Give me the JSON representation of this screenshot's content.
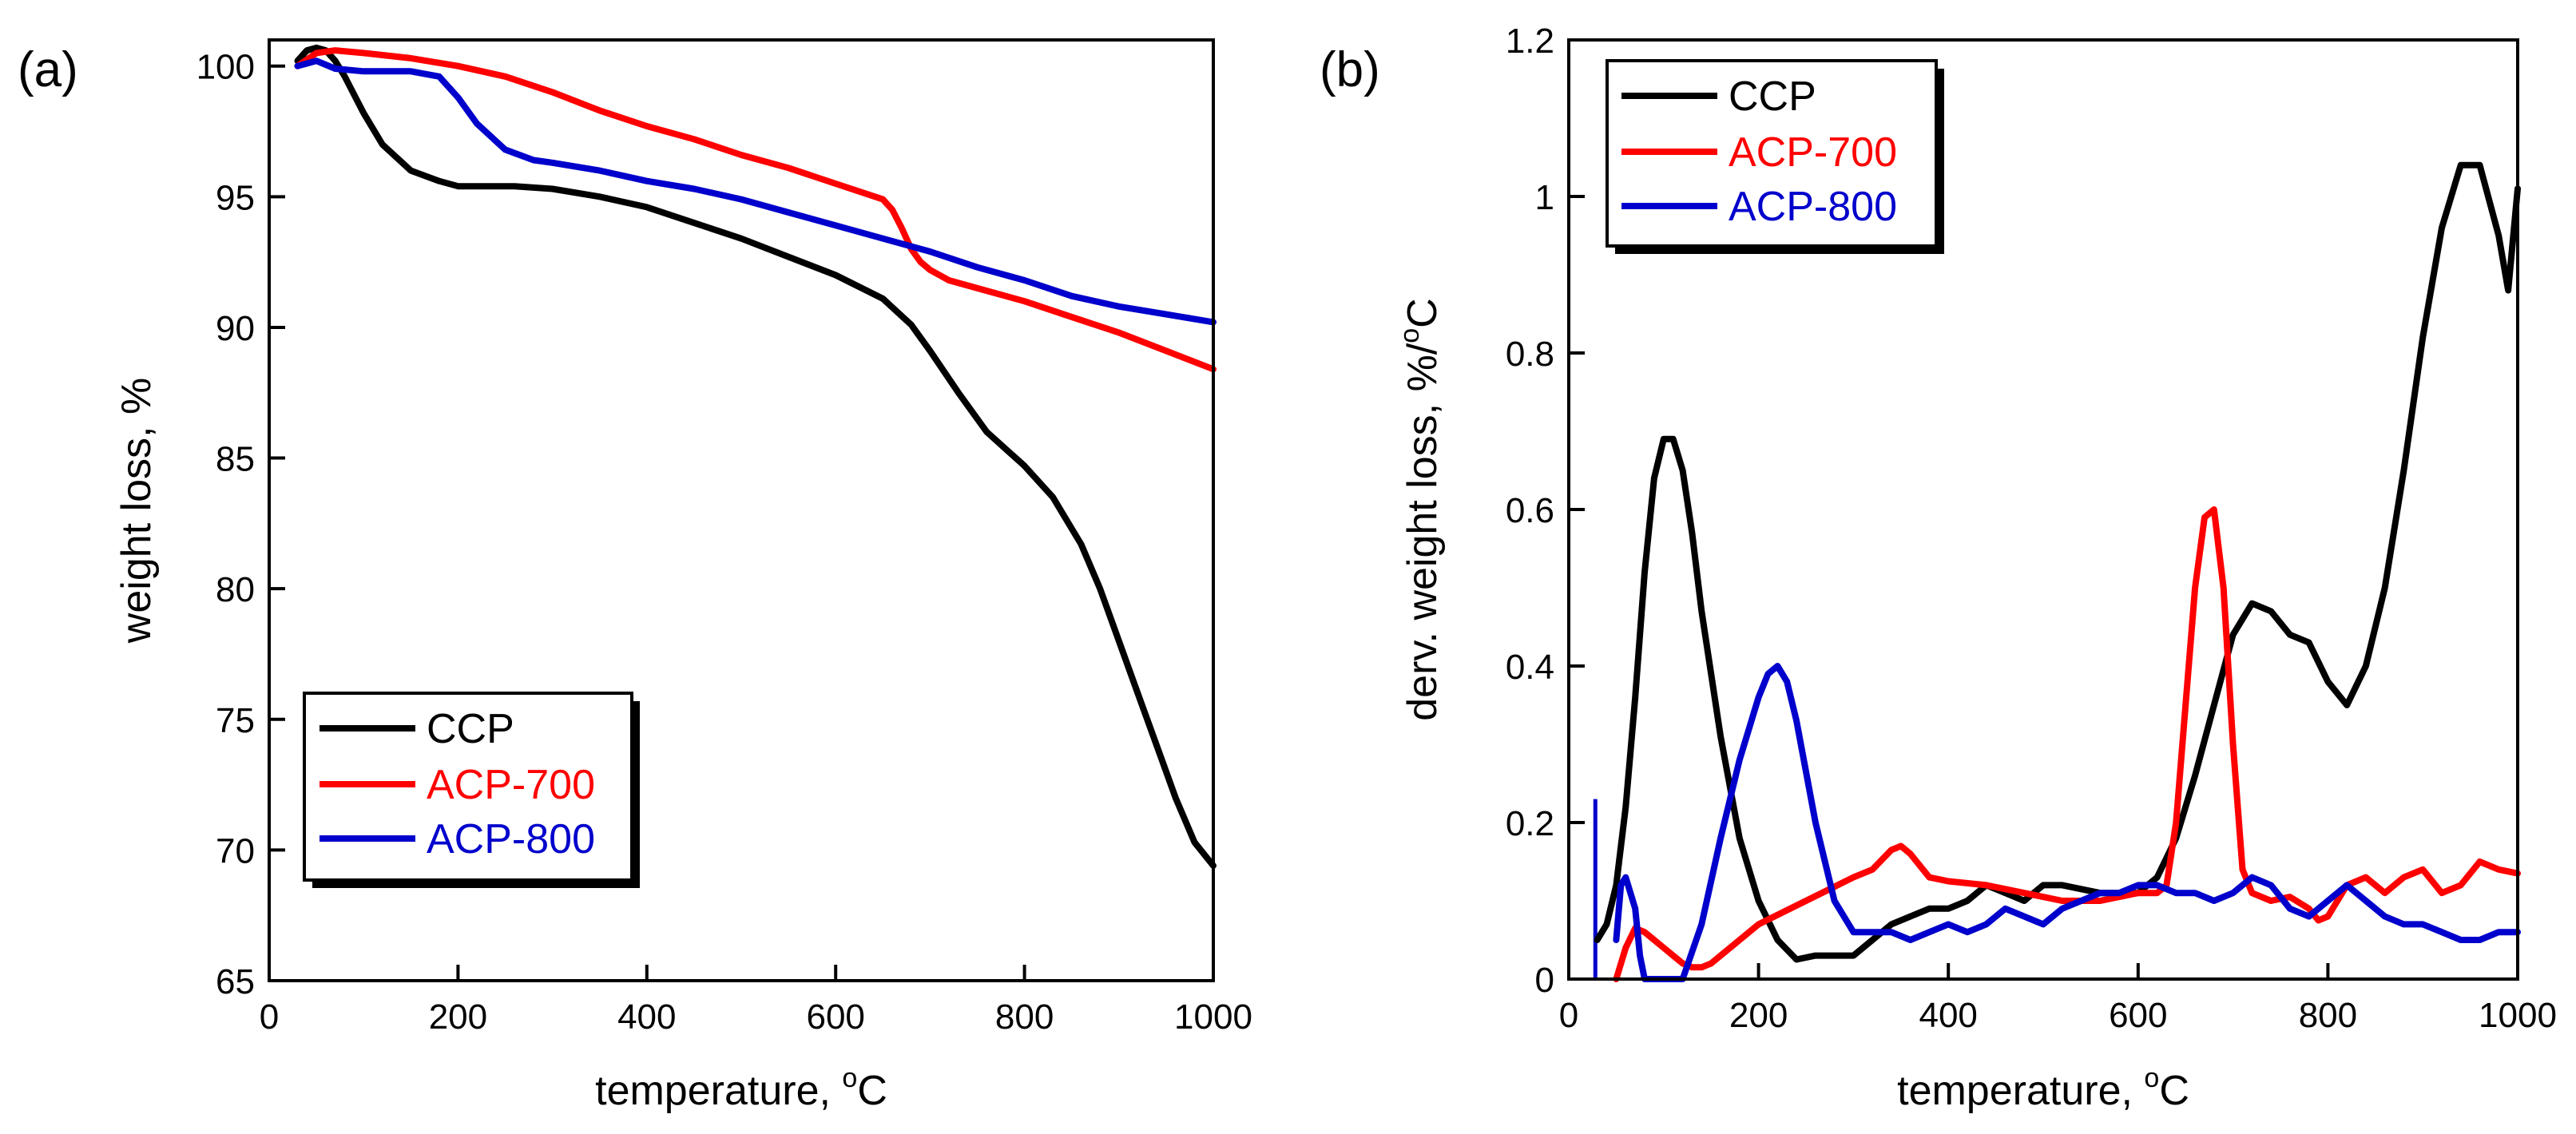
{
  "colors": {
    "CCP": "#000000",
    "ACP-700": "#ff0000",
    "ACP-800": "#0000cc"
  },
  "chart_data": [
    {
      "panel_label": "(a)",
      "type": "line",
      "xlabel": "temperature, ",
      "xlabel_sup": "o",
      "xlabel_unit": "C",
      "ylabel": "weight loss, %",
      "xlim": [
        0,
        1000
      ],
      "ylim": [
        65,
        101
      ],
      "xticks": [
        0,
        200,
        400,
        600,
        800,
        1000
      ],
      "yticks": [
        65,
        70,
        75,
        80,
        85,
        90,
        95,
        100
      ],
      "legend": [
        "CCP",
        "ACP-700",
        "ACP-800"
      ],
      "legend_position": "bottom-left",
      "series": [
        {
          "name": "CCP",
          "x": [
            30,
            40,
            50,
            60,
            70,
            80,
            100,
            120,
            150,
            180,
            200,
            230,
            260,
            300,
            350,
            400,
            450,
            500,
            550,
            600,
            650,
            680,
            700,
            730,
            760,
            800,
            830,
            860,
            880,
            900,
            920,
            940,
            960,
            980,
            1000
          ],
          "y": [
            100.2,
            100.6,
            100.7,
            100.6,
            100.2,
            99.6,
            98.2,
            97.0,
            96.0,
            95.6,
            95.4,
            95.4,
            95.4,
            95.3,
            95.0,
            94.6,
            94.0,
            93.4,
            92.7,
            92.0,
            91.1,
            90.1,
            89.1,
            87.5,
            86.0,
            84.7,
            83.5,
            81.7,
            80.0,
            78.0,
            76.0,
            74.0,
            72.0,
            70.3,
            69.4
          ]
        },
        {
          "name": "ACP-700",
          "x": [
            30,
            50,
            70,
            100,
            150,
            200,
            250,
            300,
            350,
            400,
            450,
            500,
            550,
            600,
            650,
            660,
            670,
            680,
            690,
            700,
            720,
            750,
            800,
            850,
            900,
            950,
            1000
          ],
          "y": [
            100.0,
            100.5,
            100.6,
            100.5,
            100.3,
            100.0,
            99.6,
            99.0,
            98.3,
            97.7,
            97.2,
            96.6,
            96.1,
            95.5,
            94.9,
            94.5,
            93.8,
            93.0,
            92.5,
            92.2,
            91.8,
            91.5,
            91.0,
            90.4,
            89.8,
            89.1,
            88.4
          ]
        },
        {
          "name": "ACP-800",
          "x": [
            30,
            40,
            50,
            70,
            100,
            150,
            180,
            200,
            220,
            250,
            280,
            300,
            350,
            400,
            450,
            500,
            550,
            600,
            650,
            700,
            750,
            800,
            850,
            900,
            950,
            1000
          ],
          "y": [
            100.0,
            100.1,
            100.2,
            99.9,
            99.8,
            99.8,
            99.6,
            98.8,
            97.8,
            96.8,
            96.4,
            96.3,
            96.0,
            95.6,
            95.3,
            94.9,
            94.4,
            93.9,
            93.4,
            92.9,
            92.3,
            91.8,
            91.2,
            90.8,
            90.5,
            90.2
          ]
        }
      ]
    },
    {
      "panel_label": "(b)",
      "type": "line",
      "xlabel": "temperature, ",
      "xlabel_sup": "o",
      "xlabel_unit": "C",
      "ylabel": "derv. weight loss, %/",
      "ylabel_sup": "o",
      "ylabel_unit": "C",
      "xlim": [
        0,
        1000
      ],
      "ylim": [
        0,
        1.2
      ],
      "xticks": [
        0,
        200,
        400,
        600,
        800,
        1000
      ],
      "yticks": [
        0,
        0.2,
        0.4,
        0.6,
        0.8,
        1,
        1.2
      ],
      "ytick_labels": [
        "0",
        "0.2",
        "0.4",
        "0.6",
        "0.8",
        "1",
        "1.2"
      ],
      "legend": [
        "CCP",
        "ACP-700",
        "ACP-800"
      ],
      "legend_position": "top-left",
      "series": [
        {
          "name": "CCP",
          "x": [
            30,
            40,
            50,
            60,
            70,
            80,
            90,
            100,
            110,
            120,
            130,
            140,
            160,
            180,
            200,
            220,
            240,
            260,
            280,
            300,
            320,
            340,
            360,
            380,
            400,
            420,
            440,
            460,
            480,
            500,
            520,
            540,
            560,
            580,
            600,
            620,
            640,
            660,
            680,
            700,
            720,
            740,
            760,
            780,
            800,
            820,
            840,
            860,
            880,
            900,
            920,
            940,
            960,
            980,
            990,
            1000
          ],
          "y": [
            0.05,
            0.07,
            0.12,
            0.22,
            0.36,
            0.52,
            0.64,
            0.69,
            0.69,
            0.65,
            0.57,
            0.47,
            0.31,
            0.18,
            0.1,
            0.05,
            0.025,
            0.03,
            0.03,
            0.03,
            0.05,
            0.07,
            0.08,
            0.09,
            0.09,
            0.1,
            0.12,
            0.11,
            0.1,
            0.12,
            0.12,
            0.115,
            0.11,
            0.11,
            0.11,
            0.13,
            0.18,
            0.26,
            0.35,
            0.44,
            0.48,
            0.47,
            0.44,
            0.43,
            0.38,
            0.35,
            0.4,
            0.5,
            0.65,
            0.82,
            0.96,
            1.04,
            1.04,
            0.95,
            0.88,
            1.01
          ]
        },
        {
          "name": "ACP-700",
          "x": [
            50,
            60,
            70,
            80,
            90,
            100,
            110,
            120,
            130,
            140,
            150,
            200,
            250,
            300,
            320,
            340,
            350,
            360,
            380,
            400,
            440,
            480,
            520,
            560,
            600,
            620,
            630,
            640,
            650,
            660,
            670,
            680,
            690,
            700,
            710,
            720,
            740,
            760,
            780,
            790,
            800,
            820,
            840,
            860,
            880,
            900,
            920,
            940,
            960,
            980,
            1000
          ],
          "y": [
            0.0,
            0.04,
            0.065,
            0.06,
            0.05,
            0.04,
            0.03,
            0.02,
            0.015,
            0.015,
            0.02,
            0.07,
            0.1,
            0.13,
            0.14,
            0.165,
            0.17,
            0.16,
            0.13,
            0.125,
            0.12,
            0.11,
            0.1,
            0.1,
            0.11,
            0.11,
            0.12,
            0.2,
            0.35,
            0.5,
            0.59,
            0.6,
            0.5,
            0.3,
            0.14,
            0.11,
            0.1,
            0.105,
            0.09,
            0.075,
            0.08,
            0.12,
            0.13,
            0.11,
            0.13,
            0.14,
            0.11,
            0.12,
            0.15,
            0.14,
            0.135
          ]
        },
        {
          "name": "ACP-800",
          "x": [
            50,
            55,
            60,
            70,
            75,
            80,
            120,
            140,
            160,
            180,
            200,
            210,
            220,
            230,
            240,
            260,
            280,
            300,
            320,
            340,
            360,
            380,
            400,
            420,
            440,
            460,
            480,
            500,
            520,
            540,
            560,
            580,
            600,
            620,
            640,
            660,
            680,
            700,
            720,
            740,
            760,
            780,
            800,
            820,
            840,
            860,
            880,
            900,
            920,
            940,
            960,
            980,
            1000
          ],
          "y": [
            0.05,
            0.12,
            0.13,
            0.09,
            0.03,
            0.0,
            0.0,
            0.07,
            0.18,
            0.28,
            0.36,
            0.39,
            0.4,
            0.38,
            0.33,
            0.2,
            0.1,
            0.06,
            0.06,
            0.06,
            0.05,
            0.06,
            0.07,
            0.06,
            0.07,
            0.09,
            0.08,
            0.07,
            0.09,
            0.1,
            0.11,
            0.11,
            0.12,
            0.12,
            0.11,
            0.11,
            0.1,
            0.11,
            0.13,
            0.12,
            0.09,
            0.08,
            0.1,
            0.12,
            0.1,
            0.08,
            0.07,
            0.07,
            0.06,
            0.05,
            0.05,
            0.06,
            0.06
          ]
        }
      ],
      "annotations": [
        {
          "series": "ACP-800",
          "type": "vertical-spike",
          "x": 28,
          "y_from": 0,
          "y_to": 0.23
        }
      ]
    }
  ]
}
